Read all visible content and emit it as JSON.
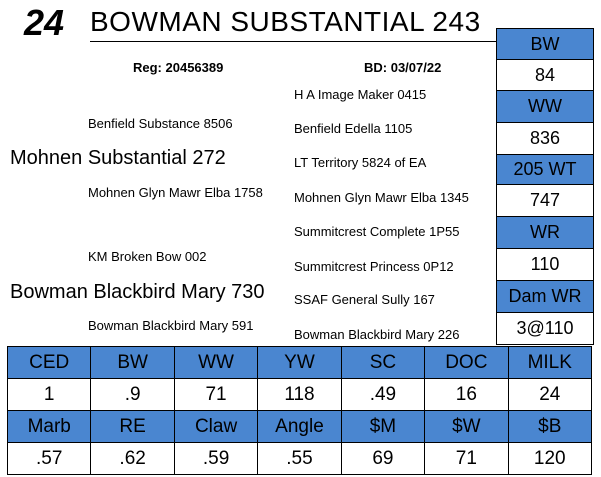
{
  "lot_number": "24",
  "animal_name": "BOWMAN SUBSTANTIAL 243",
  "reg": "Reg: 20456389",
  "birth_date": "BD: 03/07/22",
  "pedigree": {
    "sire": "Mohnen Substantial 272",
    "sire_sire": "Benfield Substance 8506",
    "sire_dam": "Mohnen Glyn Mawr Elba 1758",
    "sire_sire_sire": "H A Image Maker 0415",
    "sire_sire_dam": "Benfield Edella 1105",
    "sire_dam_sire": "LT Territory 5824 of EA",
    "sire_dam_dam": "Mohnen Glyn Mawr Elba 1345",
    "dam": "Bowman Blackbird Mary 730",
    "dam_sire": "KM Broken Bow 002",
    "dam_dam": "Bowman Blackbird Mary 591",
    "dam_sire_sire": "Summitcrest Complete 1P55",
    "dam_sire_dam": "Summitcrest Princess 0P12",
    "dam_dam_sire": "SSAF General Sully 167",
    "dam_dam_dam": "Bowman Blackbird Mary 226"
  },
  "side_stats": [
    {
      "label": "BW",
      "value": "84"
    },
    {
      "label": "WW",
      "value": "836"
    },
    {
      "label": "205 WT",
      "value": "747"
    },
    {
      "label": "WR",
      "value": "110"
    },
    {
      "label": "Dam WR",
      "value": "3@110"
    }
  ],
  "epd_row1": {
    "headers": [
      "CED",
      "BW",
      "WW",
      "YW",
      "SC",
      "DOC",
      "MILK"
    ],
    "values": [
      "1",
      ".9",
      "71",
      "118",
      ".49",
      "16",
      "24"
    ]
  },
  "epd_row2": {
    "headers": [
      "Marb",
      "RE",
      "Claw",
      "Angle",
      "$M",
      "$W",
      "$B"
    ],
    "values": [
      ".57",
      ".62",
      ".59",
      ".55",
      "69",
      "71",
      "120"
    ]
  }
}
